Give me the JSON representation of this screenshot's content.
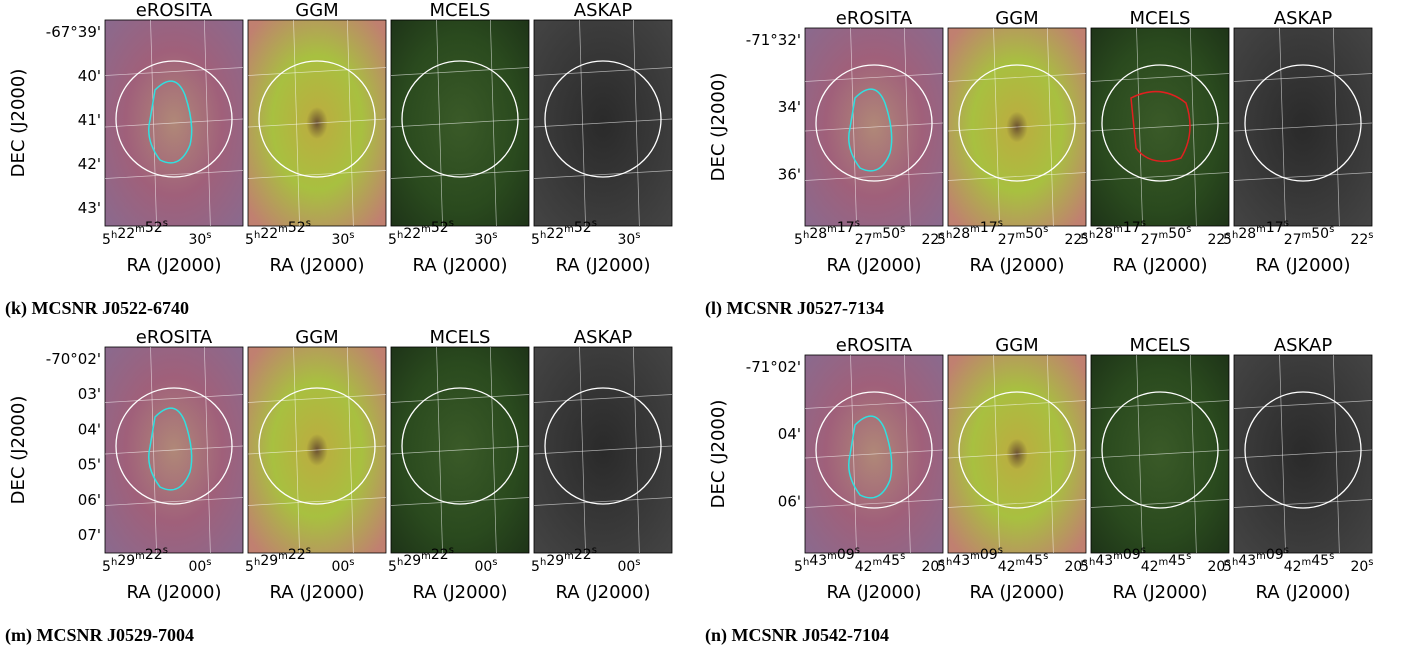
{
  "panels": [
    {
      "caption": "(k) MCSNR J0522-6740",
      "ylabel": "DEC (J2000)",
      "yticks": [
        "-67°39'",
        "40'",
        "41'",
        "42'",
        "43'"
      ],
      "images": [
        {
          "title": "eROSITA",
          "xticks": [
            "5h22m52s",
            "30s"
          ],
          "xlabel": "RA (J2000)"
        },
        {
          "title": "GGM",
          "xticks": [
            "5h22m52s",
            "30s"
          ],
          "xlabel": "RA (J2000)"
        },
        {
          "title": "MCELS",
          "xticks": [
            "5h22m52s",
            "30s"
          ],
          "xlabel": "RA (J2000)"
        },
        {
          "title": "ASKAP",
          "xticks": [
            "5h22m52s",
            "30s"
          ],
          "xlabel": "RA (J2000)"
        }
      ]
    },
    {
      "caption": "(l) MCSNR J0527-7134",
      "ylabel": "DEC (J2000)",
      "yticks": [
        "-71°32'",
        "34'",
        "36'"
      ],
      "images": [
        {
          "title": "eROSITA",
          "xticks": [
            "5h28m17s",
            "27m50s",
            "22s"
          ],
          "xlabel": "RA (J2000)"
        },
        {
          "title": "GGM",
          "xticks": [
            "5h28m17s",
            "27m50s",
            "22s"
          ],
          "xlabel": "RA (J2000)"
        },
        {
          "title": "MCELS",
          "xticks": [
            "5h28m17s",
            "27m50s",
            "22s"
          ],
          "xlabel": "RA (J2000)"
        },
        {
          "title": "ASKAP",
          "xticks": [
            "5h28m17s",
            "27m50s",
            "22s"
          ],
          "xlabel": "RA (J2000)"
        }
      ]
    },
    {
      "caption": "(m) MCSNR J0529-7004",
      "ylabel": "DEC (J2000)",
      "yticks": [
        "-70°02'",
        "03'",
        "04'",
        "05'",
        "06'",
        "07'"
      ],
      "images": [
        {
          "title": "eROSITA",
          "xticks": [
            "5h29m22s",
            "00s"
          ],
          "xlabel": "RA (J2000)"
        },
        {
          "title": "GGM",
          "xticks": [
            "5h29m22s",
            "00s"
          ],
          "xlabel": "RA (J2000)"
        },
        {
          "title": "MCELS",
          "xticks": [
            "5h29m22s",
            "00s"
          ],
          "xlabel": "RA (J2000)"
        },
        {
          "title": "ASKAP",
          "xticks": [
            "5h29m22s",
            "00s"
          ],
          "xlabel": "RA (J2000)"
        }
      ]
    },
    {
      "caption": "(n) MCSNR J0542-7104",
      "ylabel": "DEC (J2000)",
      "yticks": [
        "-71°02'",
        "04'",
        "06'"
      ],
      "images": [
        {
          "title": "eROSITA",
          "xticks": [
            "5h43m09s",
            "42m45s",
            "20s"
          ],
          "xlabel": "RA (J2000)"
        },
        {
          "title": "GGM",
          "xticks": [
            "5h43m09s",
            "42m45s",
            "20s"
          ],
          "xlabel": "RA (J2000)"
        },
        {
          "title": "MCELS",
          "xticks": [
            "5h43m09s",
            "42m45s",
            "20s"
          ],
          "xlabel": "RA (J2000)"
        },
        {
          "title": "ASKAP",
          "xticks": [
            "5h43m09s",
            "42m45s",
            "20s"
          ],
          "xlabel": "RA (J2000)"
        }
      ]
    }
  ]
}
